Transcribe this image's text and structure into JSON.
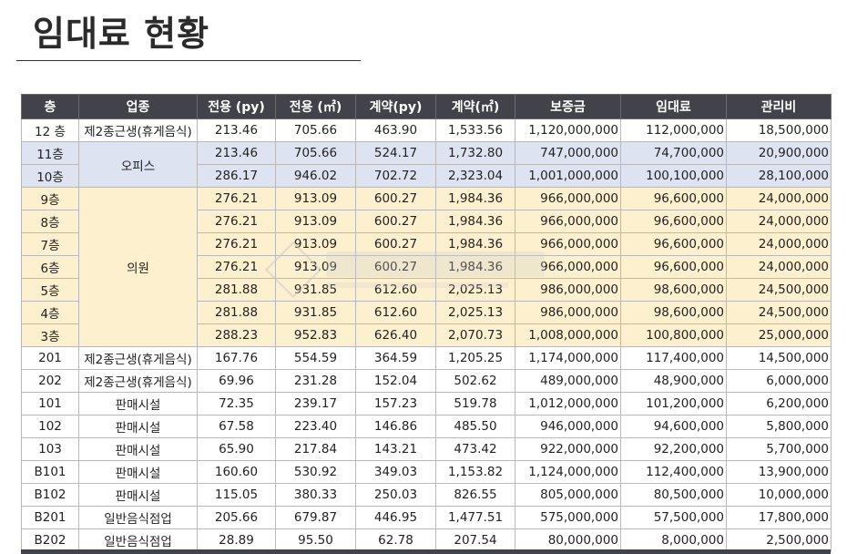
{
  "title": "임대료 현황",
  "table": {
    "headers": [
      "층",
      "업종",
      "전용 (py)",
      "전용 (㎡)",
      "계약(py)",
      "계약(㎡)",
      "보증금",
      "임대료",
      "관리비"
    ],
    "rows": [
      {
        "floor": "12 층",
        "use": "제2종근생(휴게음식)",
        "ex_py": "213.46",
        "ex_m2": "705.66",
        "ct_py": "463.90",
        "ct_m2": "1,533.56",
        "deposit": "1,120,000,000",
        "rent": "112,000,000",
        "fee": "18,500,000"
      },
      {
        "floor": "11층",
        "use": "오피스",
        "ex_py": "213.46",
        "ex_m2": "705.66",
        "ct_py": "524.17",
        "ct_m2": "1,732.80",
        "deposit": "747,000,000",
        "rent": "74,700,000",
        "fee": "20,900,000"
      },
      {
        "floor": "10층",
        "use": "",
        "ex_py": "286.17",
        "ex_m2": "946.02",
        "ct_py": "702.72",
        "ct_m2": "2,323.04",
        "deposit": "1,001,000,000",
        "rent": "100,100,000",
        "fee": "28,100,000"
      },
      {
        "floor": "9층",
        "use": "의원",
        "ex_py": "276.21",
        "ex_m2": "913.09",
        "ct_py": "600.27",
        "ct_m2": "1,984.36",
        "deposit": "966,000,000",
        "rent": "96,600,000",
        "fee": "24,000,000"
      },
      {
        "floor": "8층",
        "use": "",
        "ex_py": "276.21",
        "ex_m2": "913.09",
        "ct_py": "600.27",
        "ct_m2": "1,984.36",
        "deposit": "966,000,000",
        "rent": "96,600,000",
        "fee": "24,000,000"
      },
      {
        "floor": "7층",
        "use": "",
        "ex_py": "276.21",
        "ex_m2": "913.09",
        "ct_py": "600.27",
        "ct_m2": "1,984.36",
        "deposit": "966,000,000",
        "rent": "96,600,000",
        "fee": "24,000,000"
      },
      {
        "floor": "6층",
        "use": "",
        "ex_py": "276.21",
        "ex_m2": "913.09",
        "ct_py": "600.27",
        "ct_m2": "1,984.36",
        "deposit": "966,000,000",
        "rent": "96,600,000",
        "fee": "24,000,000"
      },
      {
        "floor": "5층",
        "use": "",
        "ex_py": "281.88",
        "ex_m2": "931.85",
        "ct_py": "612.60",
        "ct_m2": "2,025.13",
        "deposit": "986,000,000",
        "rent": "98,600,000",
        "fee": "24,500,000"
      },
      {
        "floor": "4층",
        "use": "",
        "ex_py": "281.88",
        "ex_m2": "931.85",
        "ct_py": "612.60",
        "ct_m2": "2,025.13",
        "deposit": "986,000,000",
        "rent": "98,600,000",
        "fee": "24,500,000"
      },
      {
        "floor": "3층",
        "use": "",
        "ex_py": "288.23",
        "ex_m2": "952.83",
        "ct_py": "626.40",
        "ct_m2": "2,070.73",
        "deposit": "1,008,000,000",
        "rent": "100,800,000",
        "fee": "25,000,000"
      },
      {
        "floor": "201",
        "use": "제2종근생(휴게음식)",
        "ex_py": "167.76",
        "ex_m2": "554.59",
        "ct_py": "364.59",
        "ct_m2": "1,205.25",
        "deposit": "1,174,000,000",
        "rent": "117,400,000",
        "fee": "14,500,000"
      },
      {
        "floor": "202",
        "use": "제2종근생(휴게음식)",
        "ex_py": "69.96",
        "ex_m2": "231.28",
        "ct_py": "152.04",
        "ct_m2": "502.62",
        "deposit": "489,000,000",
        "rent": "48,900,000",
        "fee": "6,000,000"
      },
      {
        "floor": "101",
        "use": "판매시설",
        "ex_py": "72.35",
        "ex_m2": "239.17",
        "ct_py": "157.23",
        "ct_m2": "519.78",
        "deposit": "1,012,000,000",
        "rent": "101,200,000",
        "fee": "6,200,000"
      },
      {
        "floor": "102",
        "use": "판매시설",
        "ex_py": "67.58",
        "ex_m2": "223.40",
        "ct_py": "146.86",
        "ct_m2": "485.50",
        "deposit": "946,000,000",
        "rent": "94,600,000",
        "fee": "5,800,000"
      },
      {
        "floor": "103",
        "use": "판매시설",
        "ex_py": "65.90",
        "ex_m2": "217.84",
        "ct_py": "143.21",
        "ct_m2": "473.42",
        "deposit": "922,000,000",
        "rent": "92,200,000",
        "fee": "5,700,000"
      },
      {
        "floor": "B101",
        "use": "판매시설",
        "ex_py": "160.60",
        "ex_m2": "530.92",
        "ct_py": "349.03",
        "ct_m2": "1,153.82",
        "deposit": "1,124,000,000",
        "rent": "112,400,000",
        "fee": "13,900,000"
      },
      {
        "floor": "B102",
        "use": "판매시설",
        "ex_py": "115.05",
        "ex_m2": "380.33",
        "ct_py": "250.03",
        "ct_m2": "826.55",
        "deposit": "805,000,000",
        "rent": "80,500,000",
        "fee": "10,000,000"
      },
      {
        "floor": "B201",
        "use": "일반음식점업",
        "ex_py": "205.66",
        "ex_m2": "679.87",
        "ct_py": "446.95",
        "ct_m2": "1,477.51",
        "deposit": "575,000,000",
        "rent": "57,500,000",
        "fee": "17,800,000"
      },
      {
        "floor": "B202",
        "use": "일반음식점업",
        "ex_py": "28.89",
        "ex_m2": "95.50",
        "ct_py": "62.78",
        "ct_m2": "207.54",
        "deposit": "80,000,000",
        "rent": "8,000,000",
        "fee": "2,500,000"
      }
    ]
  },
  "colors": {
    "header_bg": "#42424a",
    "office_bg": "#dde3f1",
    "clinic_bg": "#fdf0cf"
  }
}
